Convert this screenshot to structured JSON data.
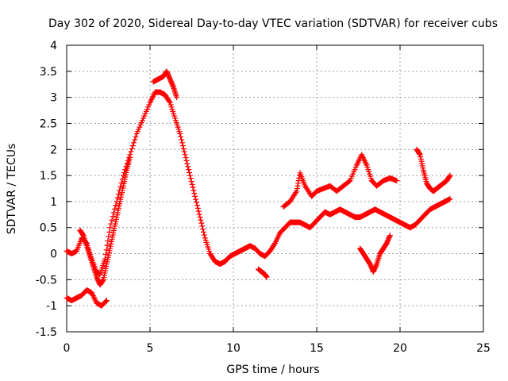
{
  "chart_data": {
    "type": "scatter",
    "title": "Day 302 of 2020, Sidereal Day-to-day VTEC variation (SDTVAR) for receiver cubs",
    "xlabel": "GPS time / hours",
    "ylabel": "SDTVAR / TECUs",
    "xlim": [
      0,
      25
    ],
    "ylim": [
      -1.5,
      4
    ],
    "x_ticks": [
      "0",
      "5",
      "10",
      "15",
      "20",
      "25"
    ],
    "y_ticks": [
      "-1.5",
      "-1",
      "-0.5",
      "0",
      "0.5",
      "1",
      "1.5",
      "2",
      "2.5",
      "3",
      "3.5",
      "4"
    ],
    "grid": true,
    "marker": "plus",
    "color": "#ff0000",
    "series": [
      {
        "name": "main-track",
        "x": [
          0.0,
          0.3,
          0.6,
          0.9,
          1.2,
          1.5,
          1.8,
          2.0,
          2.3,
          2.6,
          3.0,
          3.4,
          3.8,
          4.2,
          4.6,
          5.0,
          5.3,
          5.6,
          5.9,
          6.2,
          6.5,
          6.8,
          7.1,
          7.4,
          7.7,
          8.0,
          8.3,
          8.6,
          8.9,
          9.2,
          9.5,
          9.8,
          10.1,
          10.4,
          10.7,
          11.0,
          11.3,
          11.6,
          11.9,
          12.2,
          12.5,
          12.8,
          13.1,
          13.4,
          13.7,
          14.0,
          14.3,
          14.6,
          14.9,
          15.2,
          15.5,
          15.8,
          16.1,
          16.4,
          16.7,
          17.0,
          17.3,
          17.6,
          17.9,
          18.2,
          18.5,
          18.8,
          19.1,
          19.4,
          19.7,
          20.0,
          20.3,
          20.6,
          20.9,
          21.2,
          21.5,
          21.8,
          22.1,
          22.4,
          22.7,
          23.0
        ],
        "y": [
          0.05,
          0.0,
          0.05,
          0.3,
          0.2,
          -0.1,
          -0.35,
          -0.4,
          -0.1,
          0.5,
          1.0,
          1.5,
          1.9,
          2.3,
          2.6,
          2.9,
          3.1,
          3.1,
          3.05,
          2.9,
          2.6,
          2.3,
          1.9,
          1.5,
          1.1,
          0.7,
          0.3,
          0.0,
          -0.15,
          -0.2,
          -0.15,
          -0.05,
          0.0,
          0.05,
          0.1,
          0.15,
          0.1,
          0.0,
          -0.05,
          0.05,
          0.2,
          0.4,
          0.5,
          0.6,
          0.6,
          0.6,
          0.55,
          0.5,
          0.6,
          0.7,
          0.8,
          0.75,
          0.8,
          0.85,
          0.8,
          0.75,
          0.7,
          0.7,
          0.75,
          0.8,
          0.85,
          0.8,
          0.75,
          0.7,
          0.65,
          0.6,
          0.55,
          0.5,
          0.55,
          0.65,
          0.75,
          0.85,
          0.9,
          0.95,
          1.0,
          1.05
        ]
      },
      {
        "name": "lower-early-branch",
        "x": [
          0.0,
          0.3,
          0.6,
          0.9,
          1.2,
          1.5,
          1.8,
          2.1,
          2.4
        ],
        "y": [
          -0.85,
          -0.9,
          -0.85,
          -0.8,
          -0.7,
          -0.75,
          -0.95,
          -1.0,
          -0.9
        ]
      },
      {
        "name": "early-high-branch",
        "x": [
          0.8,
          1.0,
          1.2,
          1.4,
          1.6,
          1.8,
          2.0,
          2.2,
          2.4,
          2.6,
          2.8,
          3.0,
          3.2,
          3.4,
          3.6,
          3.8
        ],
        "y": [
          0.45,
          0.35,
          0.15,
          -0.05,
          -0.25,
          -0.45,
          -0.6,
          -0.5,
          -0.2,
          0.1,
          0.4,
          0.7,
          1.0,
          1.3,
          1.6,
          1.85
        ]
      },
      {
        "name": "peak-upper-scatter",
        "x": [
          5.2,
          5.5,
          5.8,
          6.0,
          6.2,
          6.4,
          6.6
        ],
        "y": [
          3.3,
          3.35,
          3.4,
          3.5,
          3.35,
          3.2,
          3.0
        ]
      },
      {
        "name": "upper-afternoon-branch",
        "x": [
          13.0,
          13.4,
          13.8,
          14.0,
          14.3,
          14.7,
          15.0,
          15.4,
          15.8,
          16.2,
          16.6,
          17.0,
          17.4,
          17.7,
          18.0,
          18.3,
          18.6,
          19.0,
          19.4,
          19.8
        ],
        "y": [
          0.9,
          1.0,
          1.2,
          1.55,
          1.3,
          1.1,
          1.2,
          1.25,
          1.3,
          1.2,
          1.3,
          1.4,
          1.7,
          1.9,
          1.7,
          1.4,
          1.3,
          1.4,
          1.45,
          1.4
        ]
      },
      {
        "name": "dip-branch",
        "x": [
          17.6,
          17.8,
          18.0,
          18.2,
          18.4,
          18.6,
          18.8,
          19.0,
          19.2,
          19.4
        ],
        "y": [
          0.1,
          0.0,
          -0.1,
          -0.2,
          -0.35,
          -0.2,
          0.0,
          0.1,
          0.2,
          0.35
        ]
      },
      {
        "name": "late-arc",
        "x": [
          21.0,
          21.2,
          21.4,
          21.6,
          21.8,
          22.0,
          22.2,
          22.4,
          22.6,
          22.8,
          23.0
        ],
        "y": [
          2.0,
          1.9,
          1.6,
          1.35,
          1.25,
          1.2,
          1.25,
          1.3,
          1.35,
          1.4,
          1.5
        ]
      },
      {
        "name": "low-midday-points",
        "x": [
          11.5,
          11.7,
          11.9,
          12.0
        ],
        "y": [
          -0.3,
          -0.35,
          -0.4,
          -0.45
        ]
      }
    ]
  }
}
